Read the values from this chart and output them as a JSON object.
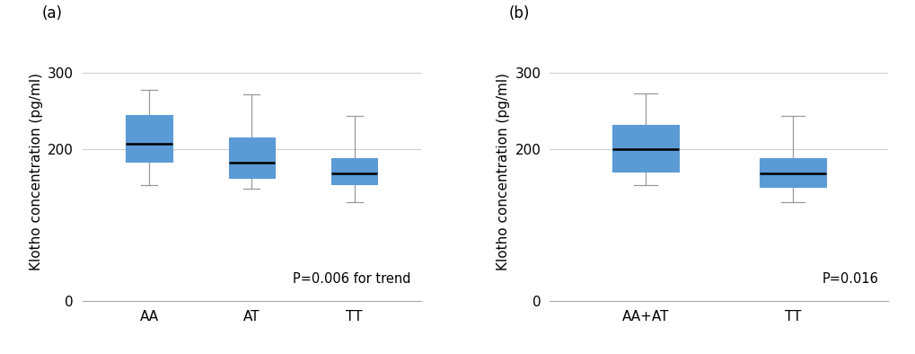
{
  "panel_a": {
    "label": "(a)",
    "categories": [
      "AA",
      "AT",
      "TT"
    ],
    "boxes": [
      {
        "whislo": 152,
        "q1": 183,
        "med": 207,
        "q3": 244,
        "whishi": 278
      },
      {
        "whislo": 148,
        "q1": 162,
        "med": 182,
        "q3": 215,
        "whishi": 272
      },
      {
        "whislo": 130,
        "q1": 153,
        "med": 168,
        "q3": 188,
        "whishi": 243
      }
    ],
    "annotation": "P=0.006 for trend",
    "ylabel": "Klotho concentration (pg/ml)",
    "yticks": [
      0,
      200,
      300
    ],
    "ylim": [
      0,
      340
    ]
  },
  "panel_b": {
    "label": "(b)",
    "categories": [
      "AA+AT",
      "TT"
    ],
    "boxes": [
      {
        "whislo": 152,
        "q1": 170,
        "med": 200,
        "q3": 232,
        "whishi": 273
      },
      {
        "whislo": 130,
        "q1": 150,
        "med": 168,
        "q3": 188,
        "whishi": 243
      }
    ],
    "annotation": "P=0.016",
    "ylabel": "Klotho concentration (pg/ml)",
    "yticks": [
      0,
      200,
      300
    ],
    "ylim": [
      0,
      340
    ]
  },
  "box_color": "#5B9BD5",
  "box_edge_color": "#5B9BD5",
  "median_color": "black",
  "whisker_color": "#999999",
  "cap_color": "#999999",
  "background_color": "#ffffff",
  "grid_color": "#d0d0d0",
  "annotation_fontsize": 10.5,
  "label_fontsize": 12,
  "tick_fontsize": 11,
  "ylabel_fontsize": 11,
  "figsize": [
    10.2,
    3.94
  ],
  "dpi": 100
}
